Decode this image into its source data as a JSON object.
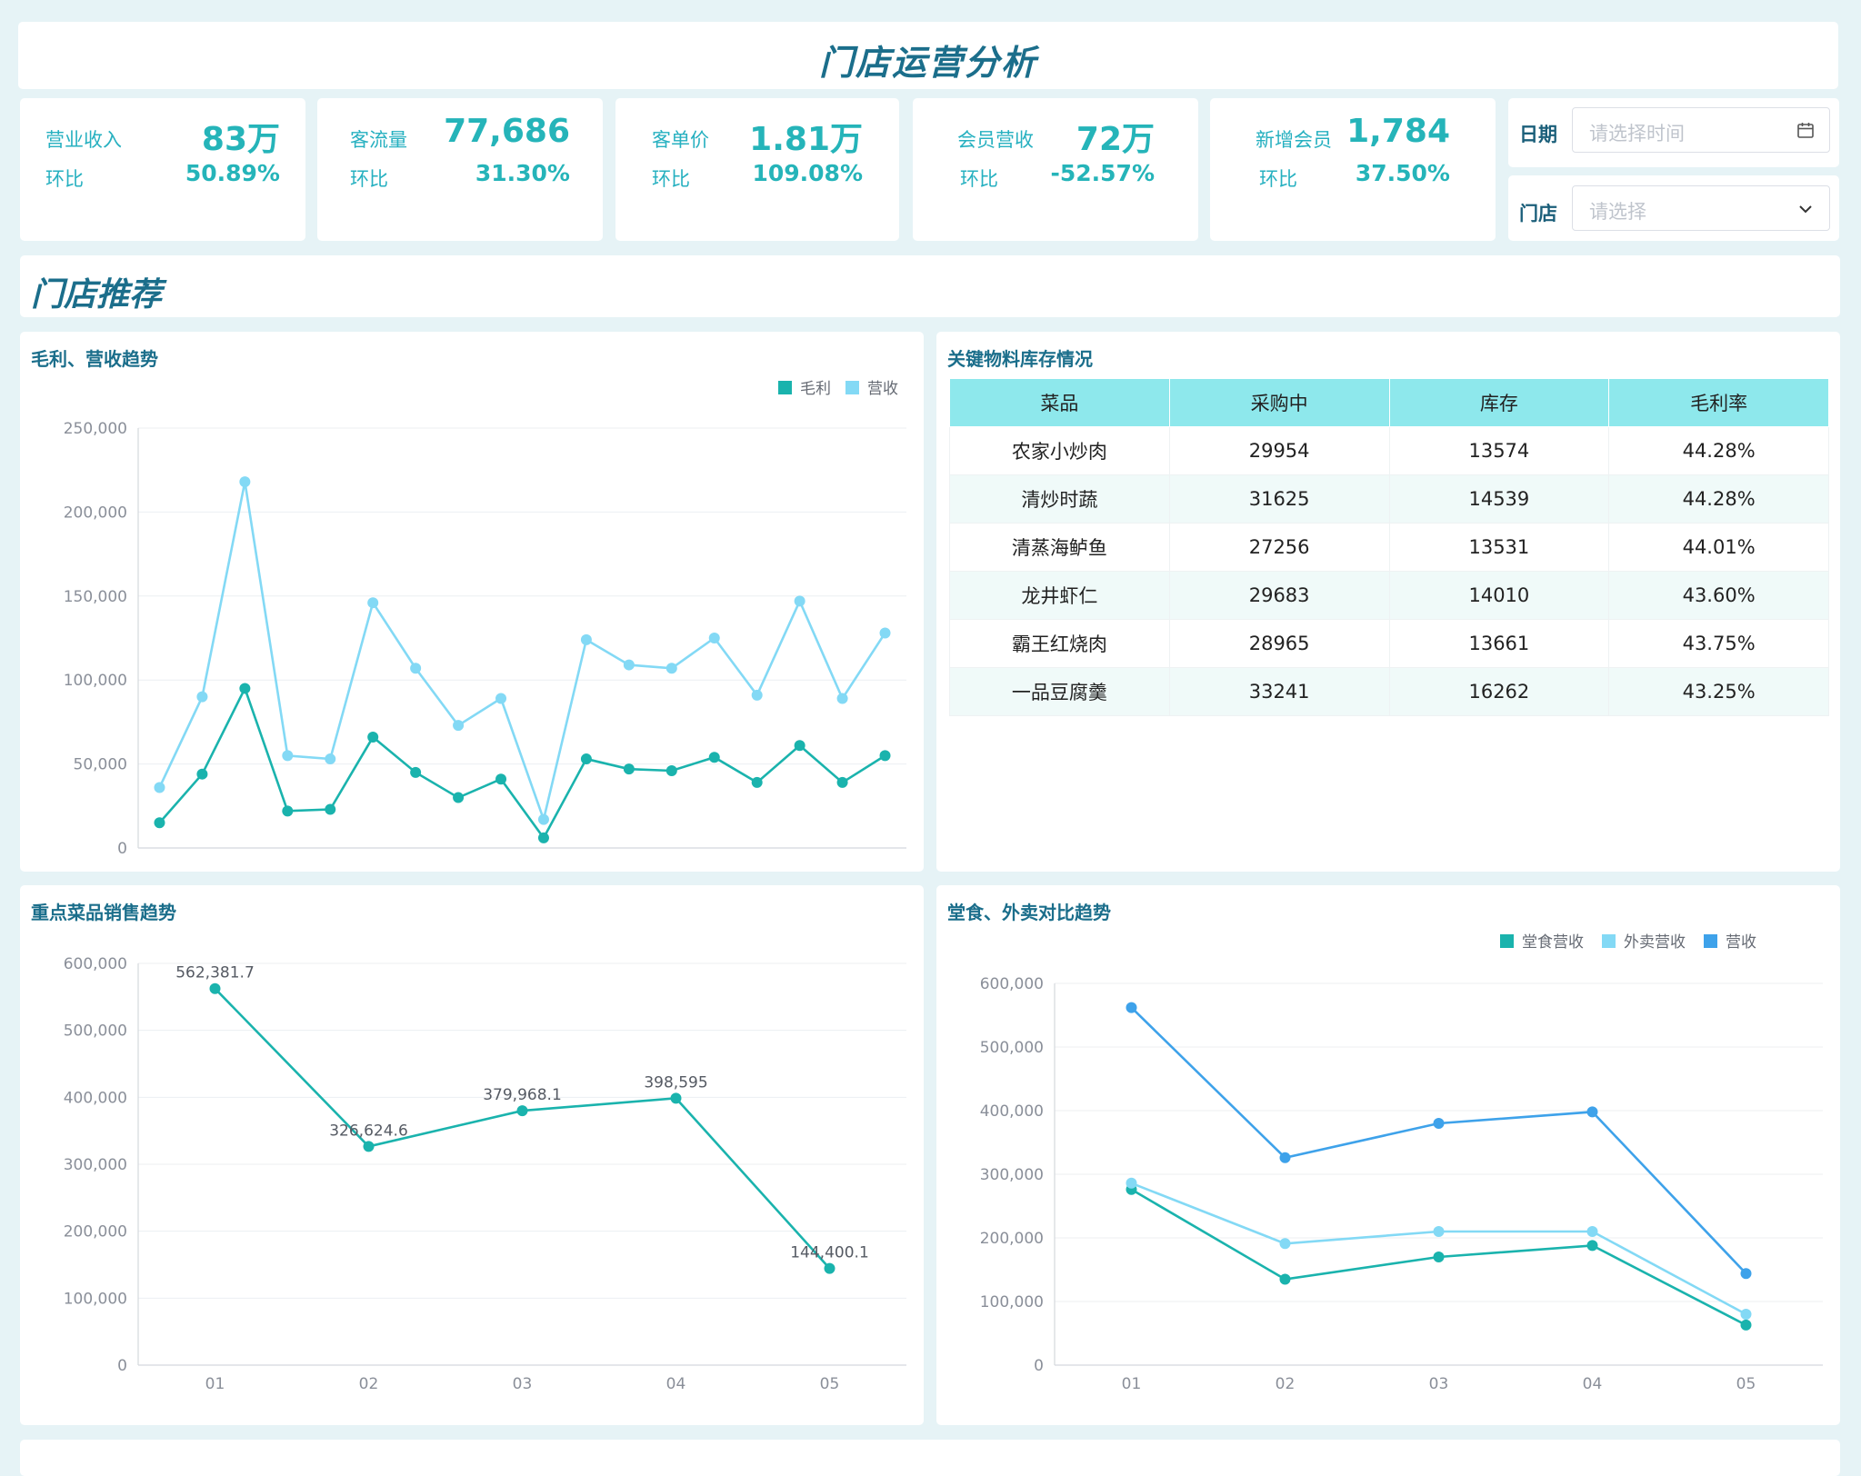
{
  "header": {
    "title": "门店运营分析"
  },
  "kpis": [
    {
      "label": "营业收入",
      "value": "83万",
      "ratio_label": "环比",
      "ratio": "50.89%"
    },
    {
      "label": "客流量",
      "value": "77,686",
      "ratio_label": "环比",
      "ratio": "31.30%"
    },
    {
      "label": "客单价",
      "value": "1.81万",
      "ratio_label": "环比",
      "ratio": "109.08%"
    },
    {
      "label": "会员营收",
      "value": "72万",
      "ratio_label": "环比",
      "ratio": "-52.57%"
    },
    {
      "label": "新增会员",
      "value": "1,784",
      "ratio_label": "环比",
      "ratio": "37.50%"
    }
  ],
  "filters": {
    "date_label": "日期",
    "date_placeholder": "请选择时间",
    "store_label": "门店",
    "store_placeholder": "请选择"
  },
  "section": {
    "title": "门店推荐"
  },
  "colors": {
    "teal": "#1ab3ad",
    "light_blue": "#83d9f5",
    "blue": "#3ea2ea",
    "title": "#1b6e8b"
  },
  "chart_data": [
    {
      "title": "毛利、营收趋势",
      "type": "line",
      "x": [
        "",
        "",
        "",
        "",
        "",
        "",
        "",
        "",
        "",
        "",
        "",
        "",
        "",
        "",
        "",
        "",
        "",
        ""
      ],
      "ylim": [
        0,
        250000
      ],
      "yticks": [
        "0",
        "50,000",
        "100,000",
        "150,000",
        "200,000",
        "250,000"
      ],
      "legend": "top-right",
      "series": [
        {
          "name": "毛利",
          "color": "#1ab3ad",
          "values": [
            15000,
            44000,
            95000,
            22000,
            23000,
            66000,
            45000,
            30000,
            41000,
            6000,
            53000,
            47000,
            46000,
            54000,
            39000,
            61000,
            39000,
            55000
          ]
        },
        {
          "name": "营收",
          "color": "#83d9f5",
          "values": [
            36000,
            90000,
            218000,
            55000,
            53000,
            146000,
            107000,
            73000,
            89000,
            17000,
            124000,
            109000,
            107000,
            125000,
            91000,
            147000,
            89000,
            128000
          ]
        }
      ]
    },
    {
      "title": "重点菜品销售趋势",
      "type": "line",
      "x": [
        "01",
        "02",
        "03",
        "04",
        "05"
      ],
      "ylim": [
        0,
        600000
      ],
      "yticks": [
        "0",
        "100,000",
        "200,000",
        "300,000",
        "400,000",
        "500,000",
        "600,000"
      ],
      "series": [
        {
          "color": "#1ab3ad",
          "values": [
            562381.7,
            326624.6,
            379968.1,
            398595,
            144400.1
          ],
          "labels": [
            "562,381.7",
            "326,624.6",
            "379,968.1",
            "398,595",
            "144,400.1"
          ]
        }
      ]
    },
    {
      "title": "堂食、外卖对比趋势",
      "type": "line",
      "x": [
        "01",
        "02",
        "03",
        "04",
        "05"
      ],
      "ylim": [
        0,
        600000
      ],
      "yticks": [
        "0",
        "100,000",
        "200,000",
        "300,000",
        "400,000",
        "500,000",
        "600,000"
      ],
      "legend": "top-right",
      "series": [
        {
          "name": "堂食营收",
          "color": "#1ab3ad",
          "values": [
            276000,
            135000,
            170000,
            188000,
            63000
          ]
        },
        {
          "name": "外卖营收",
          "color": "#83d9f5",
          "values": [
            286000,
            191000,
            210000,
            210000,
            80000
          ]
        },
        {
          "name": "营收",
          "color": "#3ea2ea",
          "values": [
            562000,
            326000,
            380000,
            398000,
            144000
          ]
        }
      ]
    }
  ],
  "stock_table": {
    "title": "关键物料库存情况",
    "columns": [
      "菜品",
      "采购中",
      "库存",
      "毛利率"
    ],
    "rows": [
      [
        "农家小炒肉",
        "29954",
        "13574",
        "44.28%"
      ],
      [
        "清炒时蔬",
        "31625",
        "14539",
        "44.28%"
      ],
      [
        "清蒸海鲈鱼",
        "27256",
        "13531",
        "44.01%"
      ],
      [
        "龙井虾仁",
        "29683",
        "14010",
        "43.60%"
      ],
      [
        "霸王红烧肉",
        "28965",
        "13661",
        "43.75%"
      ],
      [
        "一品豆腐羹",
        "33241",
        "16262",
        "43.25%"
      ]
    ]
  }
}
